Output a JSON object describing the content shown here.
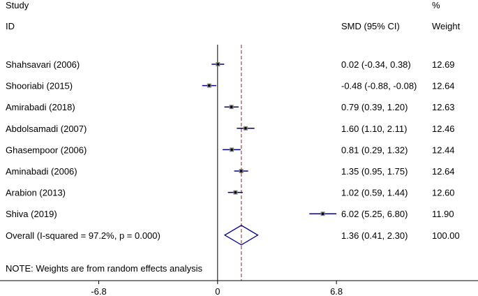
{
  "chart_data": {
    "type": "forest",
    "header": {
      "study_line1": "Study",
      "study_line2": "ID",
      "pct_line1": "%",
      "smd_header": "SMD (95% CI)",
      "weight_header": "Weight"
    },
    "studies": [
      {
        "id": "Shahsavari  (2006)",
        "smd": 0.02,
        "lo": -0.34,
        "hi": 0.38,
        "ci_text": "0.02 (-0.34, 0.38)",
        "weight": "12.69"
      },
      {
        "id": "Shooriabi  (2015)",
        "smd": -0.48,
        "lo": -0.88,
        "hi": -0.08,
        "ci_text": "-0.48 (-0.88, -0.08)",
        "weight": "12.64"
      },
      {
        "id": "Amirabadi  (2018)",
        "smd": 0.79,
        "lo": 0.39,
        "hi": 1.2,
        "ci_text": "0.79 (0.39, 1.20)",
        "weight": "12.63"
      },
      {
        "id": "Abdolsamadi (2007)",
        "smd": 1.6,
        "lo": 1.1,
        "hi": 2.11,
        "ci_text": "1.60 (1.10, 2.11)",
        "weight": "12.46"
      },
      {
        "id": "Ghasempoor  (2006)",
        "smd": 0.81,
        "lo": 0.29,
        "hi": 1.32,
        "ci_text": "0.81 (0.29, 1.32)",
        "weight": "12.44"
      },
      {
        "id": "Aminabadi (2006)",
        "smd": 1.35,
        "lo": 0.95,
        "hi": 1.75,
        "ci_text": "1.35 (0.95, 1.75)",
        "weight": "12.64"
      },
      {
        "id": "Arabion (2013)",
        "smd": 1.02,
        "lo": 0.59,
        "hi": 1.44,
        "ci_text": "1.02 (0.59, 1.44)",
        "weight": "12.60"
      },
      {
        "id": "Shiva (2019)",
        "smd": 6.02,
        "lo": 5.25,
        "hi": 6.8,
        "ci_text": "6.02 (5.25, 6.80)",
        "weight": "11.90"
      }
    ],
    "overall": {
      "label": "Overall  (I-squared = 97.2%, p = 0.000)",
      "smd": 1.36,
      "lo": 0.41,
      "hi": 2.3,
      "ci_text": "1.36 (0.41, 2.30)",
      "weight": "100.00"
    },
    "note": "NOTE: Weights are from random effects analysis",
    "x_ticks": [
      {
        "value": -6.8,
        "label": "-6.8"
      },
      {
        "value": 0,
        "label": "0"
      },
      {
        "value": 6.8,
        "label": "6.8"
      }
    ],
    "xlim": [
      -12.45,
      14.9
    ],
    "null_line": 0,
    "colors": {
      "ci_line": "#000080",
      "diamond": "#000080",
      "overall_line": "#8b2323",
      "text": "#000000"
    }
  }
}
